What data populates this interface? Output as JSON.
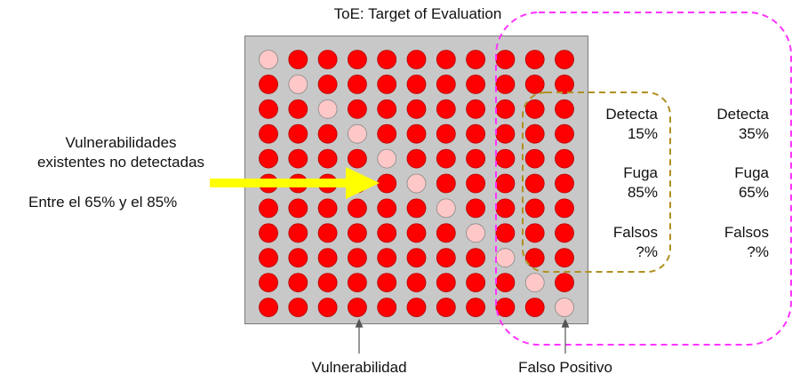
{
  "title": "ToE: Target of Evaluation",
  "grid": {
    "rows": 11,
    "cols": 11,
    "vulnerability_color": "#ff0000",
    "false_positive_color": "#ffc8c8",
    "false_positive_cells": [
      [
        0,
        0
      ],
      [
        1,
        1
      ],
      [
        2,
        2
      ],
      [
        3,
        3
      ],
      [
        4,
        4
      ],
      [
        5,
        5
      ],
      [
        6,
        6
      ],
      [
        7,
        7
      ],
      [
        8,
        8
      ],
      [
        9,
        9
      ],
      [
        10,
        10
      ]
    ]
  },
  "left_annotation": {
    "line1": "Vulnerabilidades",
    "line2": "existentes no detectadas",
    "range": "Entre el 65% y el 85%",
    "arrow_color": "#ffff00"
  },
  "inner_stats": {
    "detecta_label": "Detecta",
    "detecta_value": "15%",
    "fuga_label": "Fuga",
    "fuga_value": "85%",
    "falsos_label": "Falsos",
    "falsos_value": "?%",
    "border_color": "#b09020"
  },
  "outer_stats": {
    "detecta_label": "Detecta",
    "detecta_value": "35%",
    "fuga_label": "Fuga",
    "fuga_value": "65%",
    "falsos_label": "Falsos",
    "falsos_value": "?%",
    "border_color": "#ff33ff"
  },
  "bottom_labels": {
    "vulnerability": "Vulnerabilidad",
    "false_positive": "Falso Positivo"
  }
}
